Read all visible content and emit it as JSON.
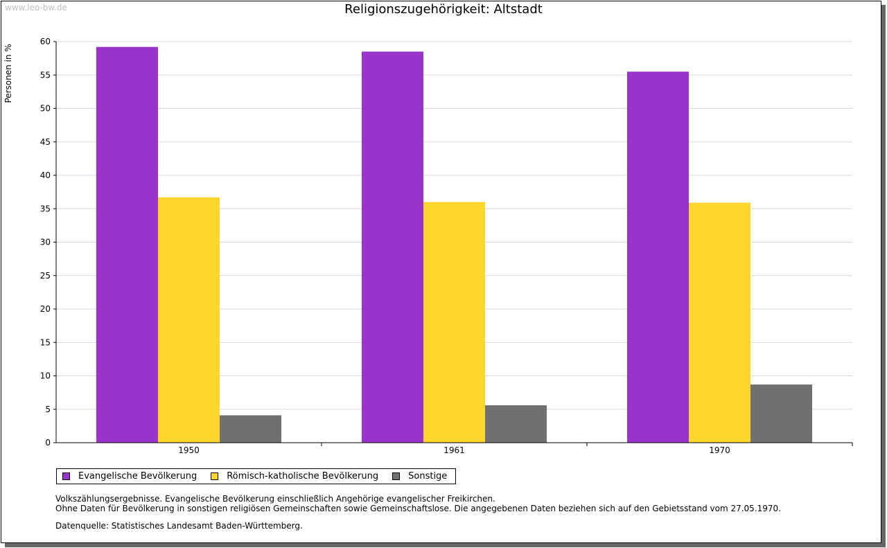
{
  "watermark": "www.leo-bw.de",
  "notes": [
    "Volkszählungsergebnisse. Evangelische Bevölkerung einschließlich Angehörige evangelischer Freikirchen.",
    "Ohne Daten für Bevölkerung in sonstigen religiösen Gemeinschaften sowie Gemeinschaftslose. Die angegebenen Daten beziehen sich auf den Gebietsstand vom 27.05.1970."
  ],
  "source": "Datenquelle: Statistisches Landesamt Baden-Württemberg.",
  "chart_data": {
    "type": "bar",
    "title": "Religionszugehörigkeit: Altstadt",
    "xlabel": "",
    "ylabel": "Personen in %",
    "ylim": [
      0,
      60
    ],
    "yticks": [
      0,
      5,
      10,
      15,
      20,
      25,
      30,
      35,
      40,
      45,
      50,
      55,
      60
    ],
    "grid": true,
    "legend_position": "bottom-left",
    "categories": [
      "1950",
      "1961",
      "1970"
    ],
    "series": [
      {
        "name": "Evangelische Bevölkerung",
        "color": "#9933cc",
        "values": [
          59.2,
          58.5,
          55.5
        ]
      },
      {
        "name": "Römisch-katholische Bevölkerung",
        "color": "#fcd52d",
        "values": [
          36.7,
          36.0,
          35.9
        ]
      },
      {
        "name": "Sonstige",
        "color": "#707070",
        "values": [
          4.1,
          5.6,
          8.7
        ]
      }
    ]
  }
}
